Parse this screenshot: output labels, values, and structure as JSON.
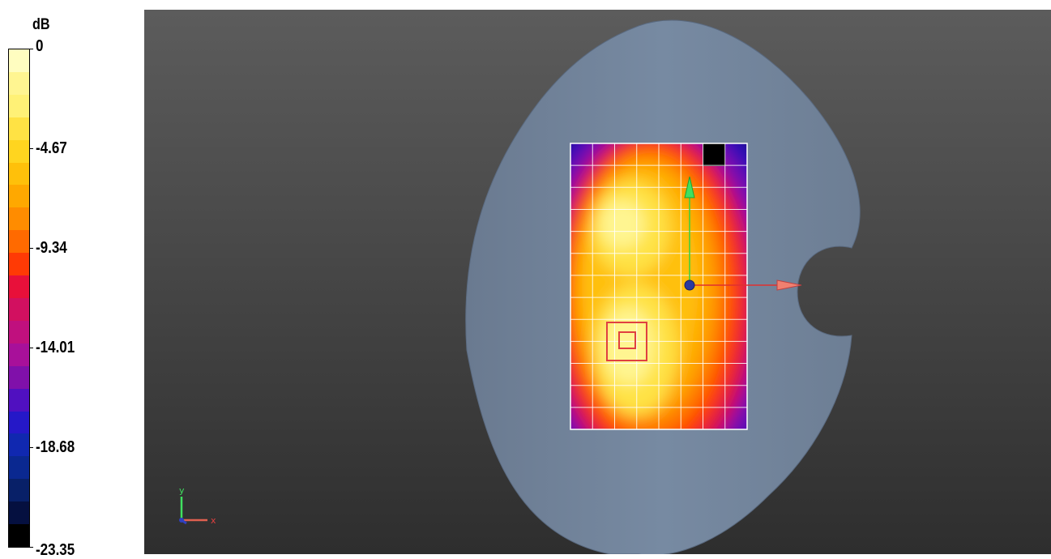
{
  "legend": {
    "unit": "dB",
    "ticks": [
      "0",
      "-4.67",
      "-9.34",
      "-14.01",
      "-18.68",
      "-23.35"
    ],
    "colors": [
      "#fffdc0",
      "#fff591",
      "#fff176",
      "#ffe244",
      "#ffd51f",
      "#ffc00a",
      "#ffa800",
      "#ff8c00",
      "#ff6a00",
      "#ff3a05",
      "#e8103a",
      "#d21060",
      "#c0107e",
      "#a8109a",
      "#8010aa",
      "#5010c0",
      "#2518c8",
      "#1028b0",
      "#0a2890",
      "#082068",
      "#051040",
      "#000000"
    ]
  },
  "viewport": {
    "probe_grid": {
      "cols": 8,
      "rows": 13
    },
    "axis_triad": {
      "y_label": "y",
      "x_label": "x"
    }
  }
}
